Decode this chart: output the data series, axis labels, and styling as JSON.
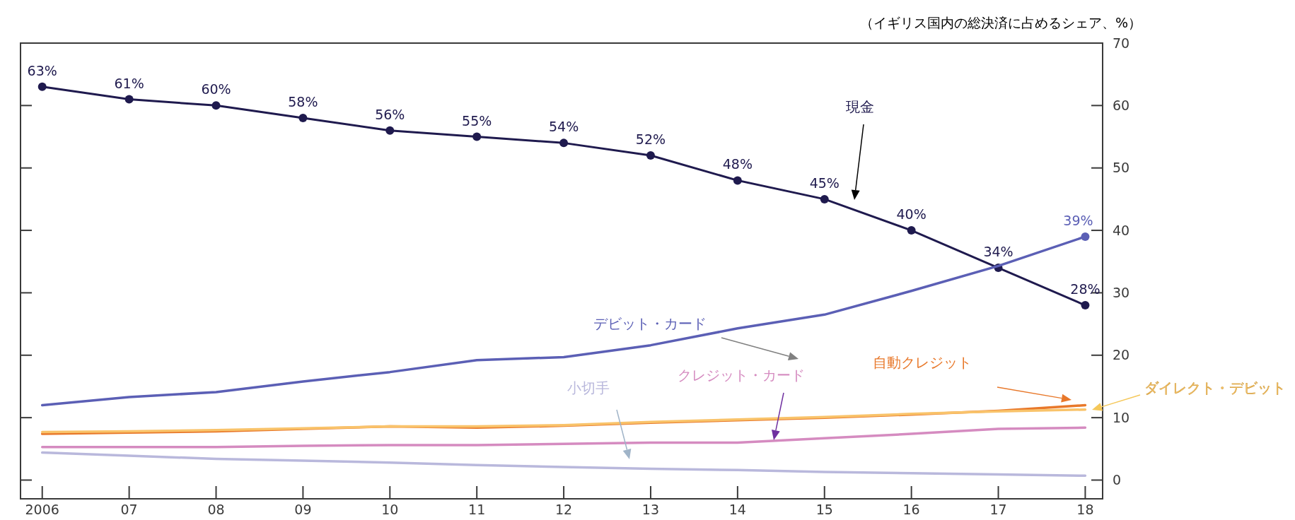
{
  "chart_data": {
    "type": "line",
    "ylabel": "（イギリス国内の総決済に占めるシェア、%）",
    "x": [
      2006,
      2007,
      2008,
      2009,
      2010,
      2011,
      2012,
      2013,
      2014,
      2015,
      2016,
      2017,
      2018
    ],
    "xlim": [
      2005.75,
      2018.2
    ],
    "xticks": [
      {
        "value": 2006,
        "label": "2006"
      },
      {
        "value": 2007,
        "label": "07"
      },
      {
        "value": 2008,
        "label": "08"
      },
      {
        "value": 2009,
        "label": "09"
      },
      {
        "value": 2010,
        "label": "10"
      },
      {
        "value": 2011,
        "label": "11"
      },
      {
        "value": 2012,
        "label": "12"
      },
      {
        "value": 2013,
        "label": "13"
      },
      {
        "value": 2014,
        "label": "14"
      },
      {
        "value": 2015,
        "label": "15"
      },
      {
        "value": 2016,
        "label": "16"
      },
      {
        "value": 2017,
        "label": "17"
      },
      {
        "value": 2018,
        "label": "18"
      }
    ],
    "ylim": [
      -3,
      70
    ],
    "yticks": [
      0,
      10,
      20,
      30,
      40,
      50,
      60,
      70
    ],
    "grid": false,
    "series": [
      {
        "name": "現金",
        "color": "#1f1a4e",
        "marker": "circle",
        "values": [
          63,
          61,
          60,
          58,
          56,
          55,
          54,
          52,
          48,
          45,
          40,
          34,
          28
        ],
        "value_labels": [
          "63%",
          "61%",
          "60%",
          "58%",
          "56%",
          "55%",
          "54%",
          "52%",
          "48%",
          "45%",
          "40%",
          "34%",
          "28%"
        ]
      },
      {
        "name": "デビット・カード",
        "color": "#5b5fb5",
        "marker": "none",
        "values": [
          12.0,
          13.3,
          14.1,
          15.8,
          17.3,
          19.2,
          19.7,
          21.6,
          24.3,
          26.5,
          30.3,
          34.3,
          39
        ],
        "value_labels": [
          null,
          null,
          null,
          null,
          null,
          null,
          null,
          null,
          null,
          null,
          null,
          null,
          "39%"
        ]
      },
      {
        "name": "自動クレジット",
        "color": "#e8782a",
        "marker": "none",
        "values": [
          7.4,
          7.6,
          7.8,
          8.2,
          8.6,
          8.4,
          8.7,
          9.2,
          9.6,
          10.0,
          10.5,
          11.1,
          12.0
        ]
      },
      {
        "name": "ダイレクト・デビット",
        "color": "#f9c36a",
        "marker": "none",
        "values": [
          7.7,
          7.8,
          8.0,
          8.3,
          8.6,
          8.6,
          8.8,
          9.3,
          9.7,
          10.1,
          10.6,
          11.0,
          11.3
        ]
      },
      {
        "name": "クレジット・カード",
        "color": "#d58bc0",
        "marker": "none",
        "values": [
          5.3,
          5.3,
          5.3,
          5.5,
          5.6,
          5.6,
          5.8,
          6.0,
          6.0,
          6.7,
          7.4,
          8.2,
          8.4
        ]
      },
      {
        "name": "小切手",
        "color": "#b9b8dc",
        "marker": "none",
        "values": [
          4.4,
          3.9,
          3.4,
          3.1,
          2.8,
          2.4,
          2.1,
          1.8,
          1.6,
          1.3,
          1.1,
          0.9,
          0.7
        ]
      }
    ]
  }
}
